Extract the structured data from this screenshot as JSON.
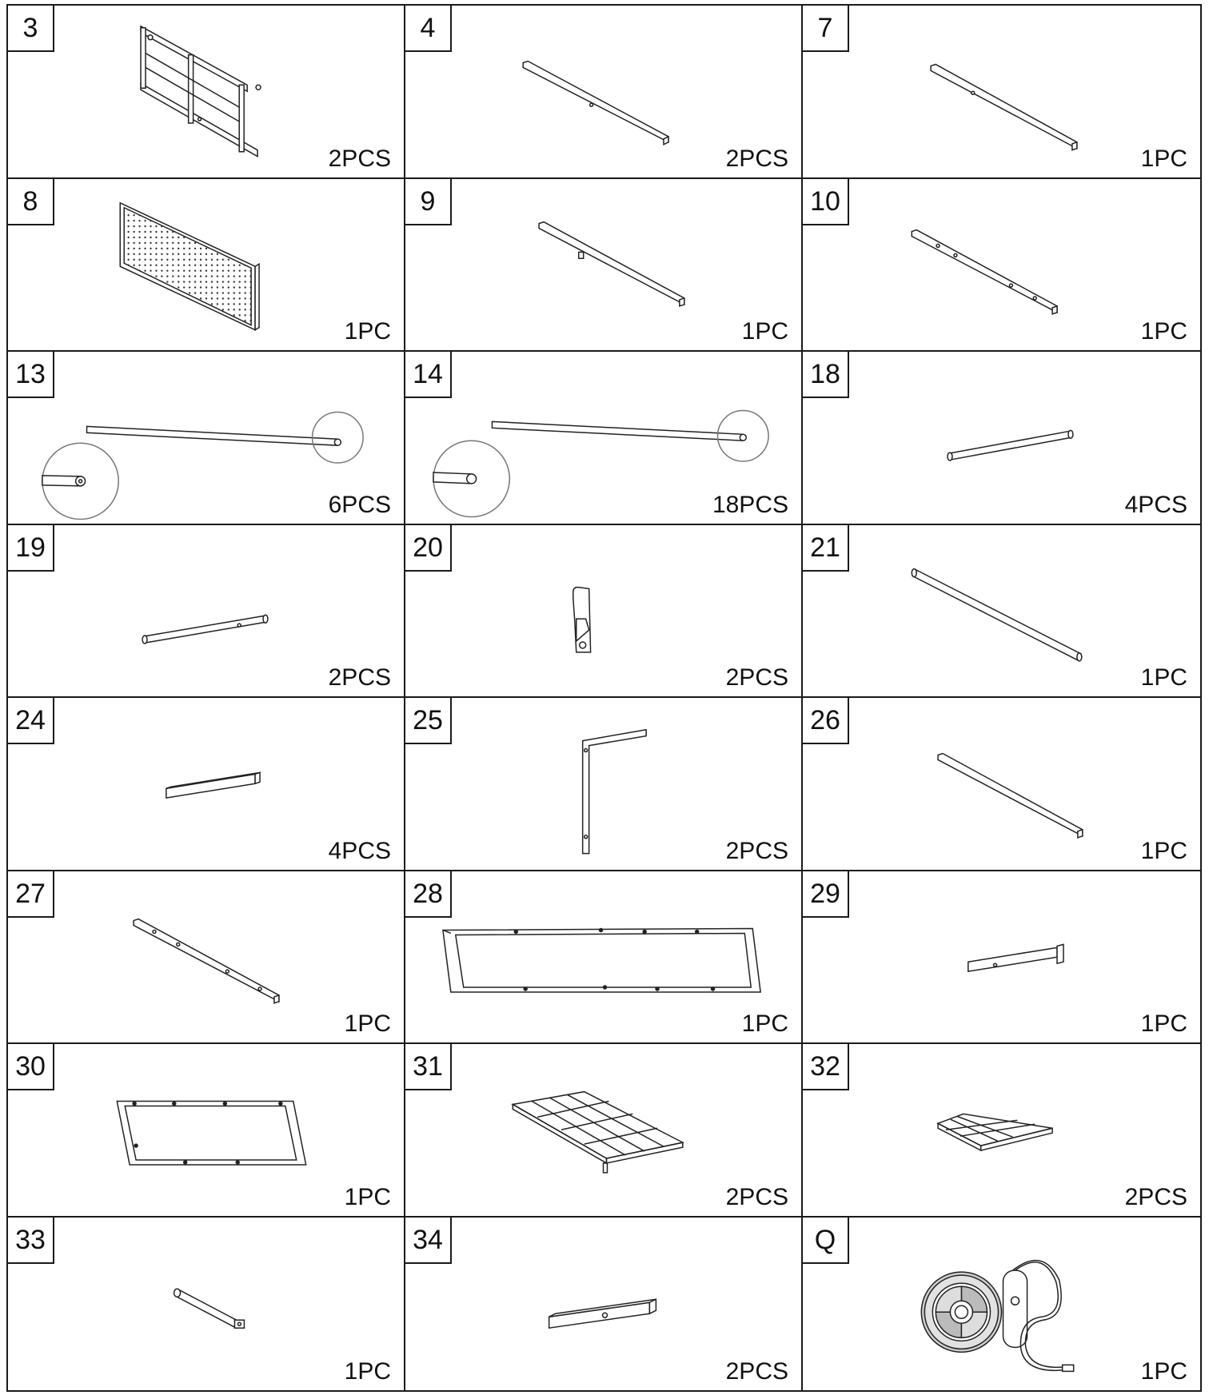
{
  "parts": [
    {
      "id": "3",
      "qty": "2PCS",
      "icon": "side-ladder-frame-icon"
    },
    {
      "id": "4",
      "qty": "2PCS",
      "icon": "square-bar-icon"
    },
    {
      "id": "7",
      "qty": "1PC",
      "icon": "square-bar-with-hole-icon"
    },
    {
      "id": "8",
      "qty": "1PC",
      "icon": "pegboard-panel-icon"
    },
    {
      "id": "9",
      "qty": "1PC",
      "icon": "square-bar-with-bracket-icon"
    },
    {
      "id": "10",
      "qty": "1PC",
      "icon": "square-bar-with-holes-icon"
    },
    {
      "id": "13",
      "qty": "6PCS",
      "icon": "long-tube-with-detail-icon"
    },
    {
      "id": "14",
      "qty": "18PCS",
      "icon": "long-tube-with-detail-icon"
    },
    {
      "id": "18",
      "qty": "4PCS",
      "icon": "short-tube-icon"
    },
    {
      "id": "19",
      "qty": "2PCS",
      "icon": "short-tube-with-hole-icon"
    },
    {
      "id": "20",
      "qty": "2PCS",
      "icon": "hook-bracket-icon"
    },
    {
      "id": "21",
      "qty": "1PC",
      "icon": "long-rod-icon"
    },
    {
      "id": "24",
      "qty": "4PCS",
      "icon": "short-square-bar-icon"
    },
    {
      "id": "25",
      "qty": "2PCS",
      "icon": "l-shaped-bracket-icon"
    },
    {
      "id": "26",
      "qty": "1PC",
      "icon": "square-bar-icon"
    },
    {
      "id": "27",
      "qty": "1PC",
      "icon": "square-bar-with-holes-icon"
    },
    {
      "id": "28",
      "qty": "1PC",
      "icon": "large-rectangular-frame-icon"
    },
    {
      "id": "29",
      "qty": "1PC",
      "icon": "bar-with-end-bracket-icon"
    },
    {
      "id": "30",
      "qty": "1PC",
      "icon": "rectangular-frame-icon"
    },
    {
      "id": "31",
      "qty": "2PCS",
      "icon": "wire-grid-shelf-icon"
    },
    {
      "id": "32",
      "qty": "2PCS",
      "icon": "small-wire-grid-shelf-icon"
    },
    {
      "id": "33",
      "qty": "1PC",
      "icon": "short-rod-with-fitting-icon"
    },
    {
      "id": "34",
      "qty": "2PCS",
      "icon": "square-bar-with-hole-icon"
    },
    {
      "id": "Q",
      "qty": "1PC",
      "icon": "led-strip-reel-with-controller-icon"
    }
  ]
}
